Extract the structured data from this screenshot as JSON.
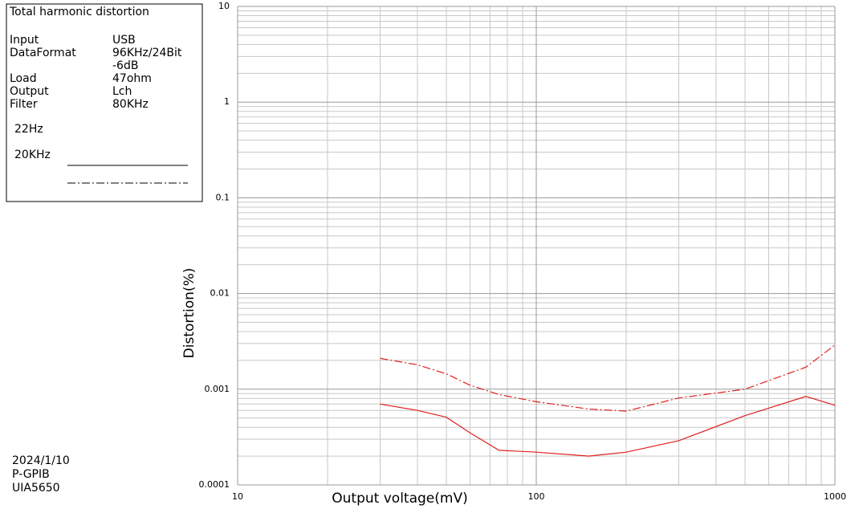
{
  "chart_data": {
    "type": "line",
    "title": "Total harmonic distortion",
    "info": [
      [
        "Input",
        "USB"
      ],
      [
        "DataFormat",
        "96KHz/24Bit"
      ],
      [
        "",
        "-6dB"
      ],
      [
        "Load",
        "47ohm"
      ],
      [
        "Output",
        "Lch"
      ],
      [
        "Filter",
        "80KHz"
      ]
    ],
    "footer": [
      "2024/1/10",
      "P-GPIB",
      "UIA5650"
    ],
    "x_label": "Output voltage(mV)",
    "y_label": "Distortion(%)",
    "x": [
      30,
      40,
      50,
      60,
      75,
      100,
      150,
      200,
      300,
      500,
      800,
      1000
    ],
    "series": [
      {
        "name": "22Hz",
        "color": "#e02020",
        "style": "solid",
        "values": [
          0.0007,
          0.0006,
          0.00051,
          0.00035,
          0.00023,
          0.00022,
          0.0002,
          0.00022,
          0.00029,
          0.00053,
          0.00084,
          0.00068
        ]
      },
      {
        "name": "20KHz",
        "color": "#e02020",
        "style": "dashdot",
        "values": [
          0.0021,
          0.0018,
          0.00145,
          0.0011,
          0.00088,
          0.00074,
          0.00062,
          0.00059,
          0.00081,
          0.001,
          0.0017,
          0.0029
        ]
      }
    ],
    "xlim": [
      10,
      1000
    ],
    "ylim": [
      0.0001,
      10
    ],
    "xticks": [
      10,
      100,
      1000
    ],
    "yticks": [
      10,
      1,
      0.1,
      0.01,
      0.001,
      0.0001
    ],
    "log_x": true,
    "log_y": true,
    "grid": true,
    "minor_grid": true
  }
}
